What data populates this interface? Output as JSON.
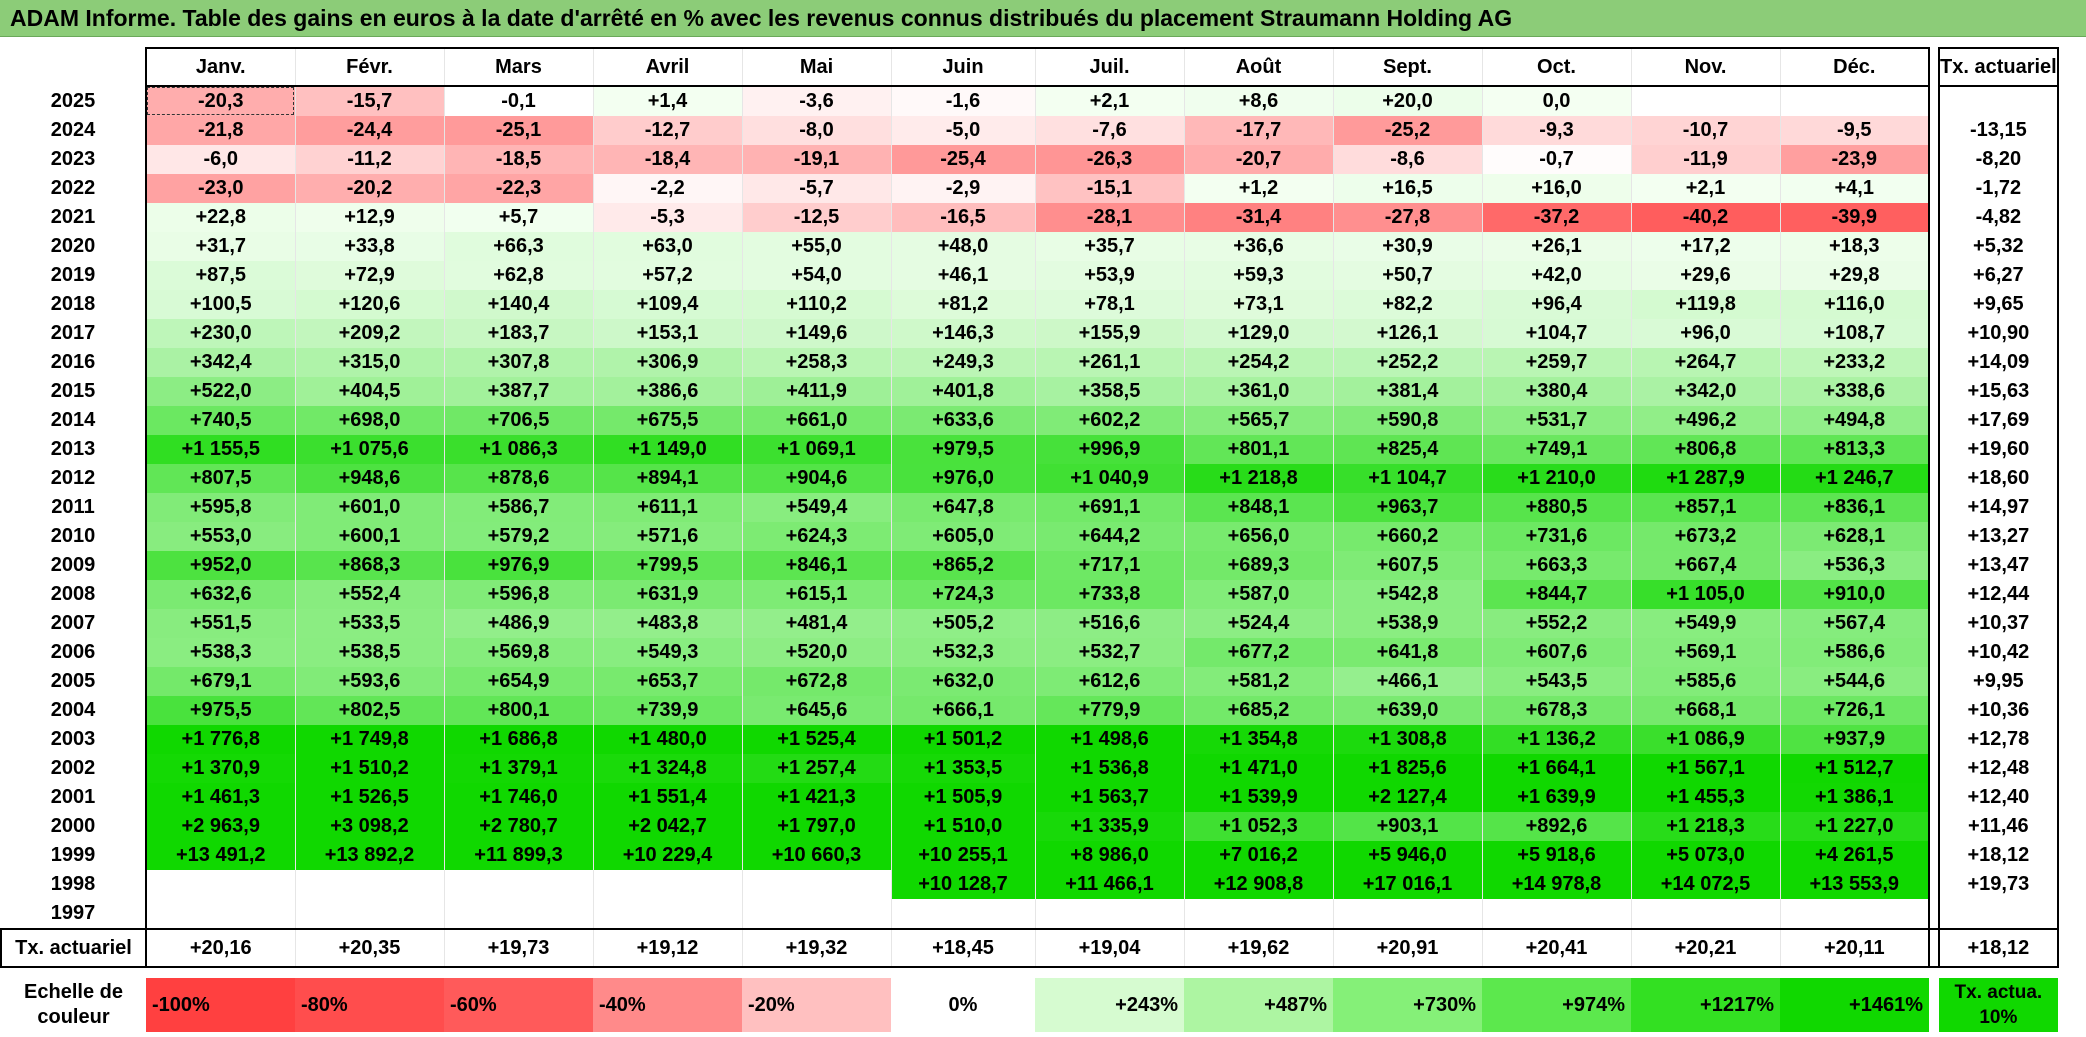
{
  "title": "ADAM Informe. Table des gains en euros à la date d'arrêté en % avec les revenus connus distribués du placement Straumann Holding AG",
  "chart_data": {
    "type": "table",
    "columns": [
      "Janv.",
      "Févr.",
      "Mars",
      "Avril",
      "Mai",
      "Juin",
      "Juil.",
      "Août",
      "Sept.",
      "Oct.",
      "Nov.",
      "Déc."
    ],
    "actuarial_header": "Tx. actuariel",
    "rows": [
      {
        "year": "2025",
        "values": [
          "-20,3",
          "-15,7",
          "-0,1",
          "+1,4",
          "-3,6",
          "-1,6",
          "+2,1",
          "+8,6",
          "+20,0",
          "0,0",
          "",
          ""
        ],
        "rate": ""
      },
      {
        "year": "2024",
        "values": [
          "-21,8",
          "-24,4",
          "-25,1",
          "-12,7",
          "-8,0",
          "-5,0",
          "-7,6",
          "-17,7",
          "-25,2",
          "-9,3",
          "-10,7",
          "-9,5"
        ],
        "rate": "-13,15"
      },
      {
        "year": "2023",
        "values": [
          "-6,0",
          "-11,2",
          "-18,5",
          "-18,4",
          "-19,1",
          "-25,4",
          "-26,3",
          "-20,7",
          "-8,6",
          "-0,7",
          "-11,9",
          "-23,9"
        ],
        "rate": "-8,20"
      },
      {
        "year": "2022",
        "values": [
          "-23,0",
          "-20,2",
          "-22,3",
          "-2,2",
          "-5,7",
          "-2,9",
          "-15,1",
          "+1,2",
          "+16,5",
          "+16,0",
          "+2,1",
          "+4,1"
        ],
        "rate": "-1,72"
      },
      {
        "year": "2021",
        "values": [
          "+22,8",
          "+12,9",
          "+5,7",
          "-5,3",
          "-12,5",
          "-16,5",
          "-28,1",
          "-31,4",
          "-27,8",
          "-37,2",
          "-40,2",
          "-39,9"
        ],
        "rate": "-4,82"
      },
      {
        "year": "2020",
        "values": [
          "+31,7",
          "+33,8",
          "+66,3",
          "+63,0",
          "+55,0",
          "+48,0",
          "+35,7",
          "+36,6",
          "+30,9",
          "+26,1",
          "+17,2",
          "+18,3"
        ],
        "rate": "+5,32"
      },
      {
        "year": "2019",
        "values": [
          "+87,5",
          "+72,9",
          "+62,8",
          "+57,2",
          "+54,0",
          "+46,1",
          "+53,9",
          "+59,3",
          "+50,7",
          "+42,0",
          "+29,6",
          "+29,8"
        ],
        "rate": "+6,27"
      },
      {
        "year": "2018",
        "values": [
          "+100,5",
          "+120,6",
          "+140,4",
          "+109,4",
          "+110,2",
          "+81,2",
          "+78,1",
          "+73,1",
          "+82,2",
          "+96,4",
          "+119,8",
          "+116,0"
        ],
        "rate": "+9,65"
      },
      {
        "year": "2017",
        "values": [
          "+230,0",
          "+209,2",
          "+183,7",
          "+153,1",
          "+149,6",
          "+146,3",
          "+155,9",
          "+129,0",
          "+126,1",
          "+104,7",
          "+96,0",
          "+108,7"
        ],
        "rate": "+10,90"
      },
      {
        "year": "2016",
        "values": [
          "+342,4",
          "+315,0",
          "+307,8",
          "+306,9",
          "+258,3",
          "+249,3",
          "+261,1",
          "+254,2",
          "+252,2",
          "+259,7",
          "+264,7",
          "+233,2"
        ],
        "rate": "+14,09"
      },
      {
        "year": "2015",
        "values": [
          "+522,0",
          "+404,5",
          "+387,7",
          "+386,6",
          "+411,9",
          "+401,8",
          "+358,5",
          "+361,0",
          "+381,4",
          "+380,4",
          "+342,0",
          "+338,6"
        ],
        "rate": "+15,63"
      },
      {
        "year": "2014",
        "values": [
          "+740,5",
          "+698,0",
          "+706,5",
          "+675,5",
          "+661,0",
          "+633,6",
          "+602,2",
          "+565,7",
          "+590,8",
          "+531,7",
          "+496,2",
          "+494,8"
        ],
        "rate": "+17,69"
      },
      {
        "year": "2013",
        "values": [
          "+1 155,5",
          "+1 075,6",
          "+1 086,3",
          "+1 149,0",
          "+1 069,1",
          "+979,5",
          "+996,9",
          "+801,1",
          "+825,4",
          "+749,1",
          "+806,8",
          "+813,3"
        ],
        "rate": "+19,60"
      },
      {
        "year": "2012",
        "values": [
          "+807,5",
          "+948,6",
          "+878,6",
          "+894,1",
          "+904,6",
          "+976,0",
          "+1 040,9",
          "+1 218,8",
          "+1 104,7",
          "+1 210,0",
          "+1 287,9",
          "+1 246,7"
        ],
        "rate": "+18,60"
      },
      {
        "year": "2011",
        "values": [
          "+595,8",
          "+601,0",
          "+586,7",
          "+611,1",
          "+549,4",
          "+647,8",
          "+691,1",
          "+848,1",
          "+963,7",
          "+880,5",
          "+857,1",
          "+836,1"
        ],
        "rate": "+14,97"
      },
      {
        "year": "2010",
        "values": [
          "+553,0",
          "+600,1",
          "+579,2",
          "+571,6",
          "+624,3",
          "+605,0",
          "+644,2",
          "+656,0",
          "+660,2",
          "+731,6",
          "+673,2",
          "+628,1"
        ],
        "rate": "+13,27"
      },
      {
        "year": "2009",
        "values": [
          "+952,0",
          "+868,3",
          "+976,9",
          "+799,5",
          "+846,1",
          "+865,2",
          "+717,1",
          "+689,3",
          "+607,5",
          "+663,3",
          "+667,4",
          "+536,3"
        ],
        "rate": "+13,47"
      },
      {
        "year": "2008",
        "values": [
          "+632,6",
          "+552,4",
          "+596,8",
          "+631,9",
          "+615,1",
          "+724,3",
          "+733,8",
          "+587,0",
          "+542,8",
          "+844,7",
          "+1 105,0",
          "+910,0"
        ],
        "rate": "+12,44"
      },
      {
        "year": "2007",
        "values": [
          "+551,5",
          "+533,5",
          "+486,9",
          "+483,8",
          "+481,4",
          "+505,2",
          "+516,6",
          "+524,4",
          "+538,9",
          "+552,2",
          "+549,9",
          "+567,4"
        ],
        "rate": "+10,37"
      },
      {
        "year": "2006",
        "values": [
          "+538,3",
          "+538,5",
          "+569,8",
          "+549,3",
          "+520,0",
          "+532,3",
          "+532,7",
          "+677,2",
          "+641,8",
          "+607,6",
          "+569,1",
          "+586,6"
        ],
        "rate": "+10,42"
      },
      {
        "year": "2005",
        "values": [
          "+679,1",
          "+593,6",
          "+654,9",
          "+653,7",
          "+672,8",
          "+632,0",
          "+612,6",
          "+581,2",
          "+466,1",
          "+543,5",
          "+585,6",
          "+544,6"
        ],
        "rate": "+9,95"
      },
      {
        "year": "2004",
        "values": [
          "+975,5",
          "+802,5",
          "+800,1",
          "+739,9",
          "+645,6",
          "+666,1",
          "+779,9",
          "+685,2",
          "+639,0",
          "+678,3",
          "+668,1",
          "+726,1"
        ],
        "rate": "+10,36"
      },
      {
        "year": "2003",
        "values": [
          "+1 776,8",
          "+1 749,8",
          "+1 686,8",
          "+1 480,0",
          "+1 525,4",
          "+1 501,2",
          "+1 498,6",
          "+1 354,8",
          "+1 308,8",
          "+1 136,2",
          "+1 086,9",
          "+937,9"
        ],
        "rate": "+12,78"
      },
      {
        "year": "2002",
        "values": [
          "+1 370,9",
          "+1 510,2",
          "+1 379,1",
          "+1 324,8",
          "+1 257,4",
          "+1 353,5",
          "+1 536,8",
          "+1 471,0",
          "+1 825,6",
          "+1 664,1",
          "+1 567,1",
          "+1 512,7"
        ],
        "rate": "+12,48"
      },
      {
        "year": "2001",
        "values": [
          "+1 461,3",
          "+1 526,5",
          "+1 746,0",
          "+1 551,4",
          "+1 421,3",
          "+1 505,9",
          "+1 563,7",
          "+1 539,9",
          "+2 127,4",
          "+1 639,9",
          "+1 455,3",
          "+1 386,1"
        ],
        "rate": "+12,40"
      },
      {
        "year": "2000",
        "values": [
          "+2 963,9",
          "+3 098,2",
          "+2 780,7",
          "+2 042,7",
          "+1 797,0",
          "+1 510,0",
          "+1 335,9",
          "+1 052,3",
          "+903,1",
          "+892,6",
          "+1 218,3",
          "+1 227,0"
        ],
        "rate": "+11,46"
      },
      {
        "year": "1999",
        "values": [
          "+13 491,2",
          "+13 892,2",
          "+11 899,3",
          "+10 229,4",
          "+10 660,3",
          "+10 255,1",
          "+8 986,0",
          "+7 016,2",
          "+5 946,0",
          "+5 918,6",
          "+5 073,0",
          "+4 261,5"
        ],
        "rate": "+18,12"
      },
      {
        "year": "1998",
        "values": [
          "",
          "",
          "",
          "",
          "",
          "+10 128,7",
          "+11 466,1",
          "+12 908,8",
          "+17 016,1",
          "+14 978,8",
          "+14 072,5",
          "+13 553,9"
        ],
        "rate": "+19,73"
      },
      {
        "year": "1997",
        "values": [
          "",
          "",
          "",
          "",
          "",
          "",
          "",
          "",
          "",
          "",
          "",
          ""
        ],
        "rate": ""
      }
    ],
    "footer": {
      "label": "Tx. actuariel",
      "values": [
        "+20,16",
        "+20,35",
        "+19,73",
        "+19,12",
        "+19,32",
        "+18,45",
        "+19,04",
        "+19,62",
        "+20,91",
        "+20,41",
        "+20,21",
        "+20,11"
      ],
      "rate": "+18,12"
    },
    "scale": {
      "label": "Echelle de couleur",
      "steps": [
        {
          "label": "-100%",
          "color": "#ff4040"
        },
        {
          "label": "-80%",
          "color": "#ff4d4d"
        },
        {
          "label": "-60%",
          "color": "#ff5a5a"
        },
        {
          "label": "-40%",
          "color": "#ff8a8a"
        },
        {
          "label": "-20%",
          "color": "#ffc0c0"
        },
        {
          "label": "0%",
          "color": "#ffffff"
        },
        {
          "label": "+243%",
          "color": "#d6fbd0"
        },
        {
          "label": "+487%",
          "color": "#adf5a2"
        },
        {
          "label": "+730%",
          "color": "#85f078"
        },
        {
          "label": "+974%",
          "color": "#5ce84d"
        },
        {
          "label": "+1217%",
          "color": "#33e022"
        },
        {
          "label": "+1461%",
          "color": "#10d800"
        }
      ],
      "rate_label": "Tx. actua. 10%",
      "rate_color": "#10d800"
    }
  }
}
